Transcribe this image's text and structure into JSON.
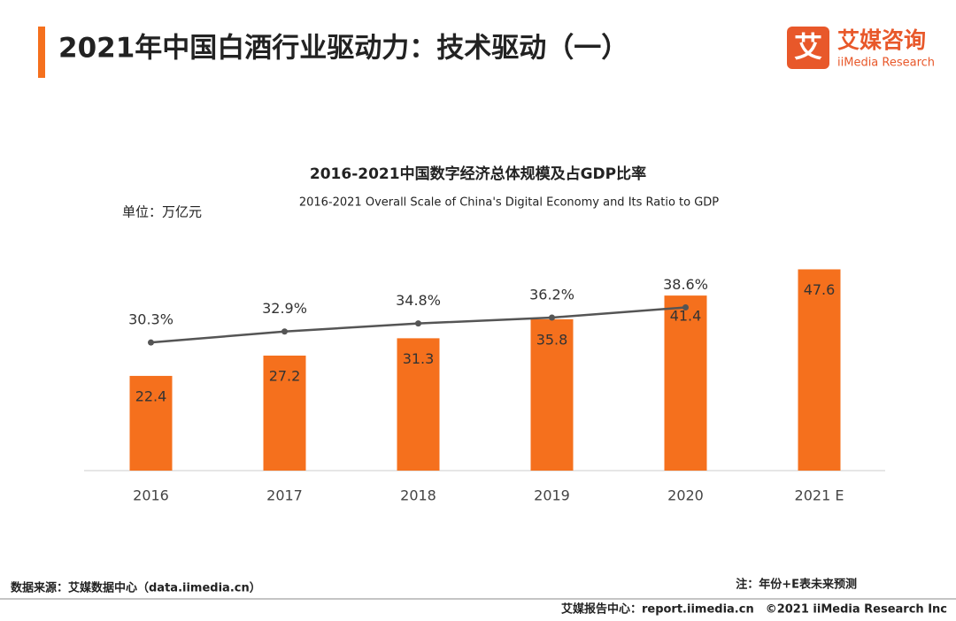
{
  "header": {
    "title": "2021年中国白酒行业驱动力：技术驱动（一）",
    "logo_icon": "艾",
    "logo_cn": "艾媒咨询",
    "logo_en": "iiMedia Research"
  },
  "chart_data": {
    "type": "bar_line",
    "title": "2016-2021中国数字经济总体规模及占GDP比率",
    "subtitle": "2016-2021 Overall Scale of China's Digital Economy and Its Ratio to GDP",
    "unit": "单位：万亿元",
    "categories": [
      "2016",
      "2017",
      "2018",
      "2019",
      "2020",
      "2021 E"
    ],
    "series": [
      {
        "type": "bar",
        "color": "#f5701d",
        "values": [
          22.4,
          27.2,
          31.3,
          35.8,
          41.4,
          47.6
        ]
      },
      {
        "type": "line",
        "axis": "y2",
        "color": "#555555",
        "values": [
          30.3,
          32.9,
          34.8,
          36.2,
          38.6,
          null
        ],
        "value_labels": [
          "30.3%",
          "32.9%",
          "34.8%",
          "36.2%",
          "38.6%",
          null
        ]
      }
    ],
    "ylim": [
      0,
      50
    ],
    "y2lim": [
      0,
      50
    ]
  },
  "footer": {
    "source": "数据来源：艾媒数据中心（data.iimedia.cn）",
    "note": "注：年份+E表未来预测",
    "credit": "艾媒报告中心：report.iimedia.cn　©2021  iiMedia Research  Inc"
  }
}
